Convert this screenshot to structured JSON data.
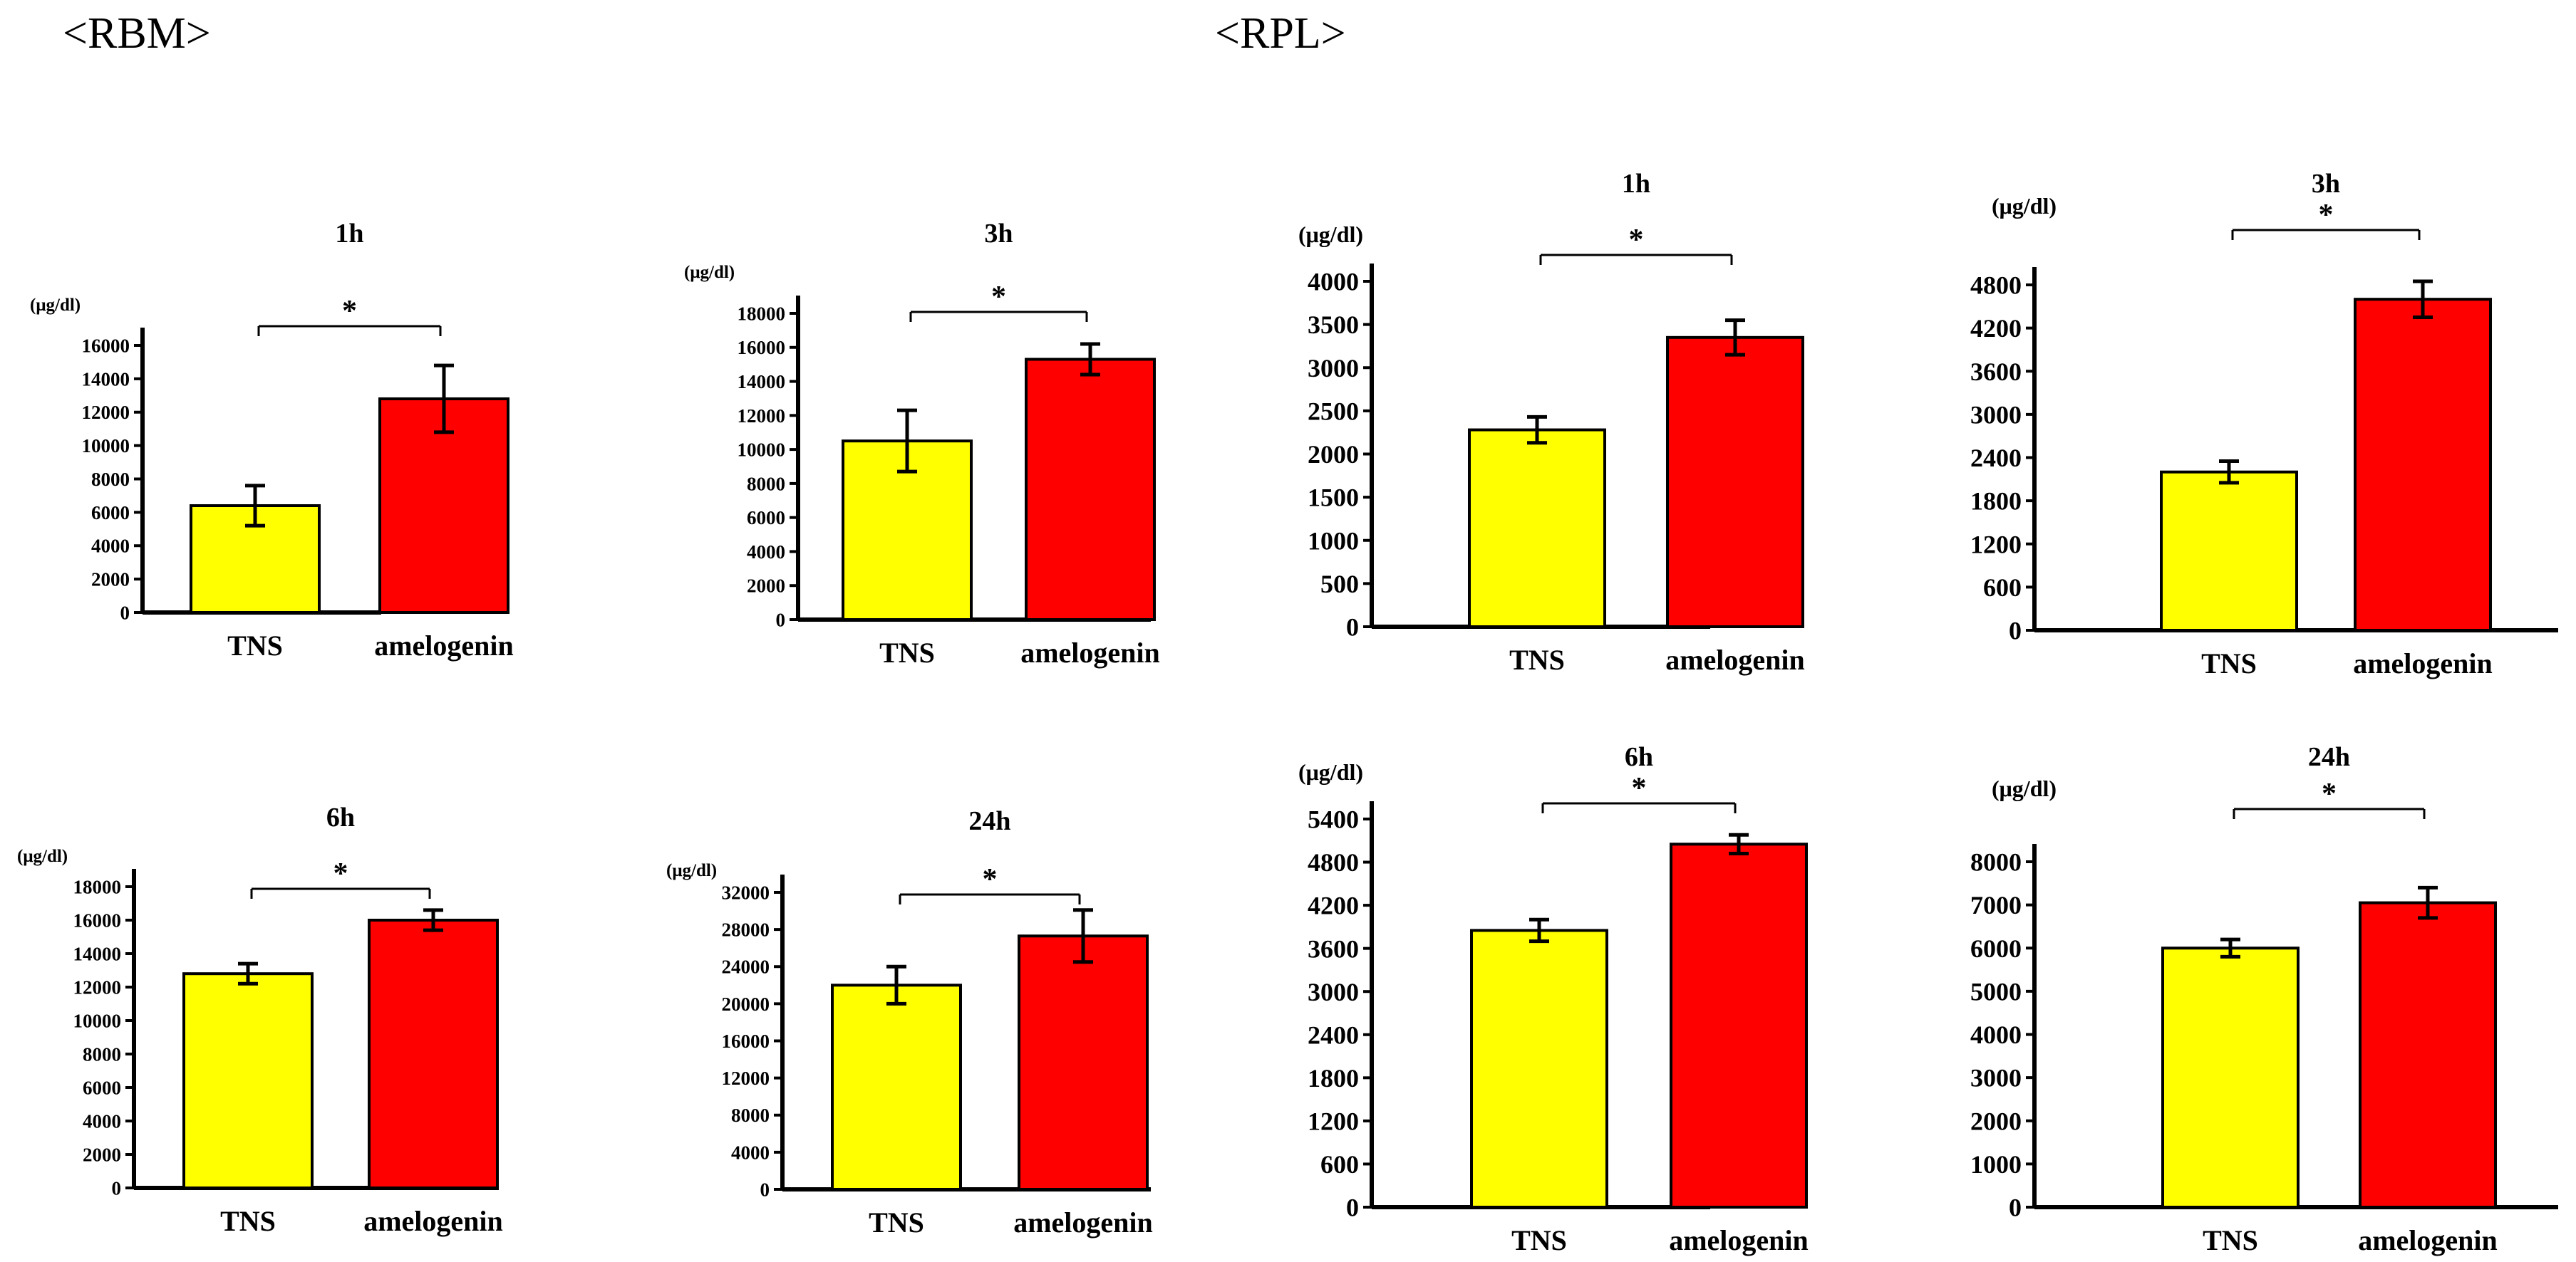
{
  "sections": {
    "rbm_label": "<RBM>",
    "rpl_label": "<RPL>"
  },
  "colors": {
    "tns": "#ffff00",
    "amelogenin": "#ff0000",
    "outline": "#000000"
  },
  "chart_data": [
    {
      "id": "rbm-1h",
      "section": "RBM",
      "type": "bar",
      "title": "1h",
      "ylabel": "(μg/dl)",
      "categories": [
        "TNS",
        "amelogenin"
      ],
      "values": [
        6400,
        12800
      ],
      "errors": [
        1200,
        2000
      ],
      "ylim": [
        0,
        16000
      ],
      "yticks": [
        "0",
        "2000",
        "4000",
        "6000",
        "8000",
        "10000",
        "12000",
        "14000",
        "16000"
      ],
      "significance": "*"
    },
    {
      "id": "rbm-3h",
      "section": "RBM",
      "type": "bar",
      "title": "3h",
      "ylabel": "(μg/dl)",
      "categories": [
        "TNS",
        "amelogenin"
      ],
      "values": [
        10500,
        15300
      ],
      "errors": [
        1800,
        900
      ],
      "ylim": [
        0,
        18000
      ],
      "yticks": [
        "0",
        "2000",
        "4000",
        "6000",
        "8000",
        "10000",
        "12000",
        "14000",
        "16000",
        "18000"
      ],
      "significance": "*"
    },
    {
      "id": "rpl-1h",
      "section": "RPL",
      "type": "bar",
      "title": "1h",
      "ylabel": "(μg/dl)",
      "categories": [
        "TNS",
        "amelogenin"
      ],
      "values": [
        2280,
        3350
      ],
      "errors": [
        150,
        200
      ],
      "ylim": [
        0,
        4000
      ],
      "yticks": [
        "0",
        "500",
        "1000",
        "1500",
        "2000",
        "2500",
        "3000",
        "3500",
        "4000"
      ],
      "significance": "*"
    },
    {
      "id": "rpl-3h",
      "section": "RPL",
      "type": "bar",
      "title": "3h",
      "ylabel": "(μg/dl)",
      "categories": [
        "TNS",
        "amelogenin"
      ],
      "values": [
        2200,
        4600
      ],
      "errors": [
        150,
        250
      ],
      "ylim": [
        0,
        4800
      ],
      "yticks": [
        "0",
        "600",
        "1200",
        "1800",
        "2400",
        "3000",
        "3600",
        "4200",
        "4800"
      ],
      "significance": "*"
    },
    {
      "id": "rbm-6h",
      "section": "RBM",
      "type": "bar",
      "title": "6h",
      "ylabel": "(μg/dl)",
      "categories": [
        "TNS",
        "amelogenin"
      ],
      "values": [
        12800,
        16000
      ],
      "errors": [
        600,
        600
      ],
      "ylim": [
        0,
        18000
      ],
      "yticks": [
        "0",
        "2000",
        "4000",
        "6000",
        "8000",
        "10000",
        "12000",
        "14000",
        "16000",
        "18000"
      ],
      "significance": "*"
    },
    {
      "id": "rbm-24h",
      "section": "RBM",
      "type": "bar",
      "title": "24h",
      "ylabel": "(μg/dl)",
      "categories": [
        "TNS",
        "amelogenin"
      ],
      "values": [
        22000,
        27300
      ],
      "errors": [
        2000,
        2800
      ],
      "ylim": [
        0,
        32000
      ],
      "yticks": [
        "0",
        "4000",
        "8000",
        "12000",
        "16000",
        "20000",
        "24000",
        "28000",
        "32000"
      ],
      "significance": "*"
    },
    {
      "id": "rpl-6h",
      "section": "RPL",
      "type": "bar",
      "title": "6h",
      "ylabel": "(μg/dl)",
      "categories": [
        "TNS",
        "amelogenin"
      ],
      "values": [
        3850,
        5050
      ],
      "errors": [
        150,
        130
      ],
      "ylim": [
        0,
        5400
      ],
      "yticks": [
        "0",
        "600",
        "1200",
        "1800",
        "2400",
        "3000",
        "3600",
        "4200",
        "4800",
        "5400"
      ],
      "significance": "*"
    },
    {
      "id": "rpl-24h",
      "section": "RPL",
      "type": "bar",
      "title": "24h",
      "ylabel": "(μg/dl)",
      "categories": [
        "TNS",
        "amelogenin"
      ],
      "values": [
        6000,
        7050
      ],
      "errors": [
        200,
        350
      ],
      "ylim": [
        0,
        8000
      ],
      "yticks": [
        "0",
        "1000",
        "2000",
        "3000",
        "4000",
        "5000",
        "6000",
        "7000",
        "8000"
      ],
      "significance": "*"
    }
  ]
}
